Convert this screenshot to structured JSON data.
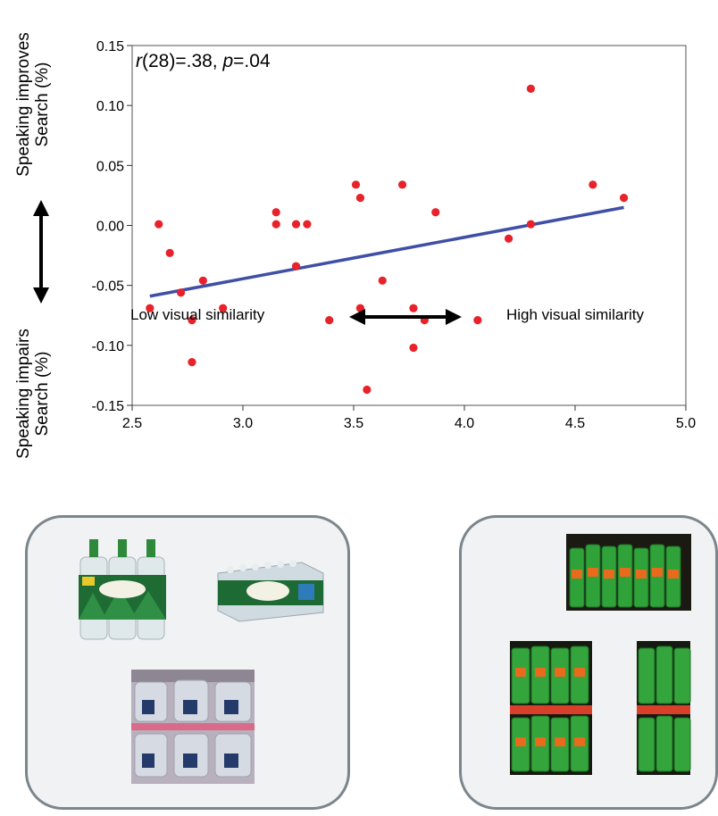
{
  "chart_data": {
    "type": "scatter",
    "title": "",
    "annotation": {
      "r_italic": "r",
      "r_rest": "(28)=.38, ",
      "p_italic": "p",
      "p_rest": "=.04"
    },
    "xlim": [
      2.5,
      5.0
    ],
    "ylim": [
      -0.15,
      0.15
    ],
    "x_ticks": [
      "2.5",
      "3.0",
      "3.5",
      "4.0",
      "4.5",
      "5.0"
    ],
    "y_ticks": [
      "0.15",
      "0.10",
      "0.05",
      "0.00",
      "-0.05",
      "-0.10",
      "-0.15"
    ],
    "grid": false,
    "ylabel_top": [
      "Speaking improves",
      "Search (%)"
    ],
    "ylabel_bottom": [
      "Speaking impairs",
      "Search (%)"
    ],
    "xlabel_left": "Low visual similarity",
    "xlabel_right": "High visual similarity",
    "points": [
      {
        "x": 2.58,
        "y": -0.069
      },
      {
        "x": 2.62,
        "y": 0.001
      },
      {
        "x": 2.67,
        "y": -0.023
      },
      {
        "x": 2.72,
        "y": -0.056
      },
      {
        "x": 2.77,
        "y": -0.079
      },
      {
        "x": 2.77,
        "y": -0.114
      },
      {
        "x": 2.82,
        "y": -0.046
      },
      {
        "x": 2.91,
        "y": -0.069
      },
      {
        "x": 3.15,
        "y": 0.011
      },
      {
        "x": 3.15,
        "y": 0.001
      },
      {
        "x": 3.24,
        "y": 0.001
      },
      {
        "x": 3.24,
        "y": -0.034
      },
      {
        "x": 3.29,
        "y": 0.001
      },
      {
        "x": 3.39,
        "y": -0.079
      },
      {
        "x": 3.51,
        "y": 0.034
      },
      {
        "x": 3.53,
        "y": 0.023
      },
      {
        "x": 3.53,
        "y": -0.069
      },
      {
        "x": 3.56,
        "y": -0.137
      },
      {
        "x": 3.63,
        "y": -0.046
      },
      {
        "x": 3.72,
        "y": 0.034
      },
      {
        "x": 3.77,
        "y": -0.069
      },
      {
        "x": 3.77,
        "y": -0.102
      },
      {
        "x": 3.82,
        "y": -0.079
      },
      {
        "x": 3.87,
        "y": 0.011
      },
      {
        "x": 4.06,
        "y": -0.079
      },
      {
        "x": 4.2,
        "y": -0.011
      },
      {
        "x": 4.3,
        "y": 0.114
      },
      {
        "x": 4.3,
        "y": 0.001
      },
      {
        "x": 4.58,
        "y": 0.034
      },
      {
        "x": 4.72,
        "y": 0.023
      }
    ],
    "fit_line": {
      "x": [
        2.58,
        4.72
      ],
      "y": [
        -0.059,
        0.015
      ]
    },
    "colors": {
      "points": "#e8222a",
      "fit_line": "#3f4fa6"
    }
  }
}
